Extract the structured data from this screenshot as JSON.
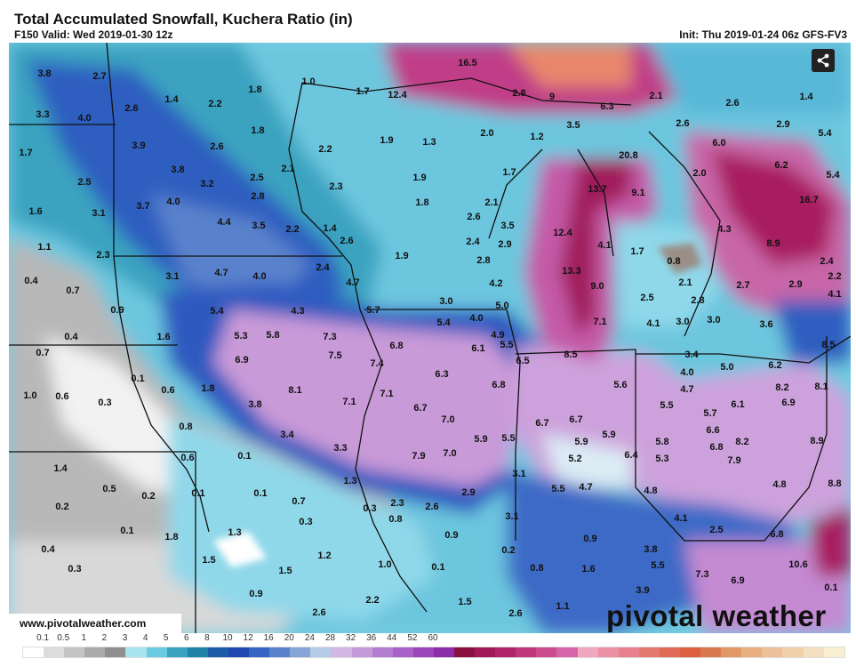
{
  "header": {
    "title": "Total Accumulated Snowfall, Kuchera Ratio (in)",
    "valid": "F150 Valid: Wed 2019-01-30 12z",
    "init": "Init: Thu 2019-01-24 06z GFS-FV3"
  },
  "share_icon": "share-icon",
  "watermark_url": "www.pivotalweather.com",
  "logo_text": "pivotal weather",
  "colorbar": {
    "labels": [
      "0.1",
      "0.5",
      "1",
      "2",
      "3",
      "4",
      "5",
      "6",
      "8",
      "10",
      "12",
      "16",
      "20",
      "24",
      "28",
      "32",
      "36",
      "44",
      "52",
      "60"
    ],
    "colors": [
      "#ffffff",
      "#dcdcdc",
      "#c4c4c4",
      "#ababab",
      "#8f8f8f",
      "#a8e4f0",
      "#6ccbe0",
      "#3aa3c0",
      "#1f84a8",
      "#1d5aa8",
      "#2048b0",
      "#3564c4",
      "#5a82cc",
      "#86a6d8",
      "#b4cce8",
      "#d2b8e2",
      "#c49ad8",
      "#b47ed0",
      "#a862c8",
      "#9a46b8",
      "#8c2ca8",
      "#8a1042",
      "#a01858",
      "#b02468",
      "#c0387a",
      "#cc4c90",
      "#d664a8",
      "#f0a8c0",
      "#ec90a4",
      "#e88090",
      "#e47870",
      "#e06a58",
      "#dc6040",
      "#d87a50",
      "#e09868",
      "#e8b080",
      "#ecc098",
      "#f0d0a8",
      "#f4e0c0",
      "#f8f0d0"
    ]
  },
  "map": {
    "labels": [
      "3.8",
      "2.7",
      "1.8",
      "1.0",
      "1.4",
      "2.2",
      "1.7",
      "12.4",
      "2.6",
      "3.3",
      "4.0",
      "1.8",
      "1.9",
      "1.7",
      "3.9",
      "2.6",
      "2.2",
      "2.1",
      "3.8",
      "2.5",
      "3.2",
      "2.3",
      "2.5",
      "2.8",
      "4.0",
      "3.7",
      "1.6",
      "3.1",
      "4.4",
      "3.5",
      "2.2",
      "1.4",
      "2.6",
      "1.1",
      "2.3",
      "1.9",
      "2.4",
      "3.1",
      "4.7",
      "4.0",
      "4.7",
      "0.4",
      "0.7",
      "0.9",
      "5.4",
      "4.3",
      "5.7",
      "16.5",
      "2.8",
      "9",
      "6.3",
      "2.1",
      "2.6",
      "1.4",
      "3.5",
      "2.6",
      "2.9",
      "5.4",
      "2.0",
      "1.2",
      "6.0",
      "20.8",
      "6.2",
      "5.4",
      "1.7",
      "2.0",
      "13.7",
      "9.1",
      "16.7",
      "2.1",
      "2.6",
      "3.5",
      "12.4",
      "4.3",
      "8.9",
      "2.4",
      "2.9",
      "4.1",
      "1.7",
      "0.8",
      "2.4",
      "2.8",
      "13.3",
      "9.0",
      "2.1",
      "2.7",
      "2.9",
      "2.2",
      "4.2",
      "4.1",
      "2.5",
      "2.8",
      "3.0",
      "5.0",
      "7.1",
      "4.1",
      "3.0",
      "3.0",
      "3.6",
      "5.4",
      "4.0",
      "4.9",
      "1.9",
      "1.8",
      "1.3",
      "1.6",
      "5.3",
      "5.8",
      "7.3",
      "6.8",
      "0.4",
      "0.7",
      "6.9",
      "7.5",
      "7.4",
      "0.1",
      "0.6",
      "1.8",
      "8.1",
      "7.1",
      "1.0",
      "0.6",
      "0.3",
      "7.1",
      "3.8",
      "6.7",
      "0.8",
      "3.4",
      "3.3",
      "7.9",
      "0.6",
      "0.1",
      "1.4",
      "1.3",
      "0.5",
      "0.2",
      "0.1",
      "0.1",
      "0.7",
      "0.2",
      "0.3",
      "2.3",
      "0.3",
      "0.8",
      "0.1",
      "1.8",
      "1.3",
      "0.4",
      "1.5",
      "1.2",
      "1.0",
      "1.5",
      "0.3",
      "0.9",
      "2.2",
      "2.6",
      "6.1",
      "5.5",
      "6.5",
      "8.5",
      "3.4",
      "5.0",
      "6.2",
      "8.5",
      "6.3",
      "4.0",
      "6.8",
      "5.6",
      "4.7",
      "8.2",
      "8.1",
      "6.1",
      "6.9",
      "5.5",
      "7.0",
      "6.7",
      "6.7",
      "5.7",
      "6.6",
      "5.9",
      "5.5",
      "5.9",
      "5.9",
      "5.8",
      "6.8",
      "8.2",
      "8.9",
      "7.0",
      "5.2",
      "6.4",
      "5.3",
      "7.9",
      "3.1",
      "2.9",
      "5.5",
      "4.7",
      "4.8",
      "4.8",
      "8.8",
      "2.6",
      "3.1",
      "4.1",
      "2.5",
      "6.8",
      "0.9",
      "0.9",
      "3.8",
      "0.2",
      "0.8",
      "0.1",
      "5.5",
      "10.6",
      "1.6",
      "7.3",
      "6.9",
      "1.5",
      "3.9",
      "1.1",
      "2.6",
      "0.1"
    ]
  }
}
